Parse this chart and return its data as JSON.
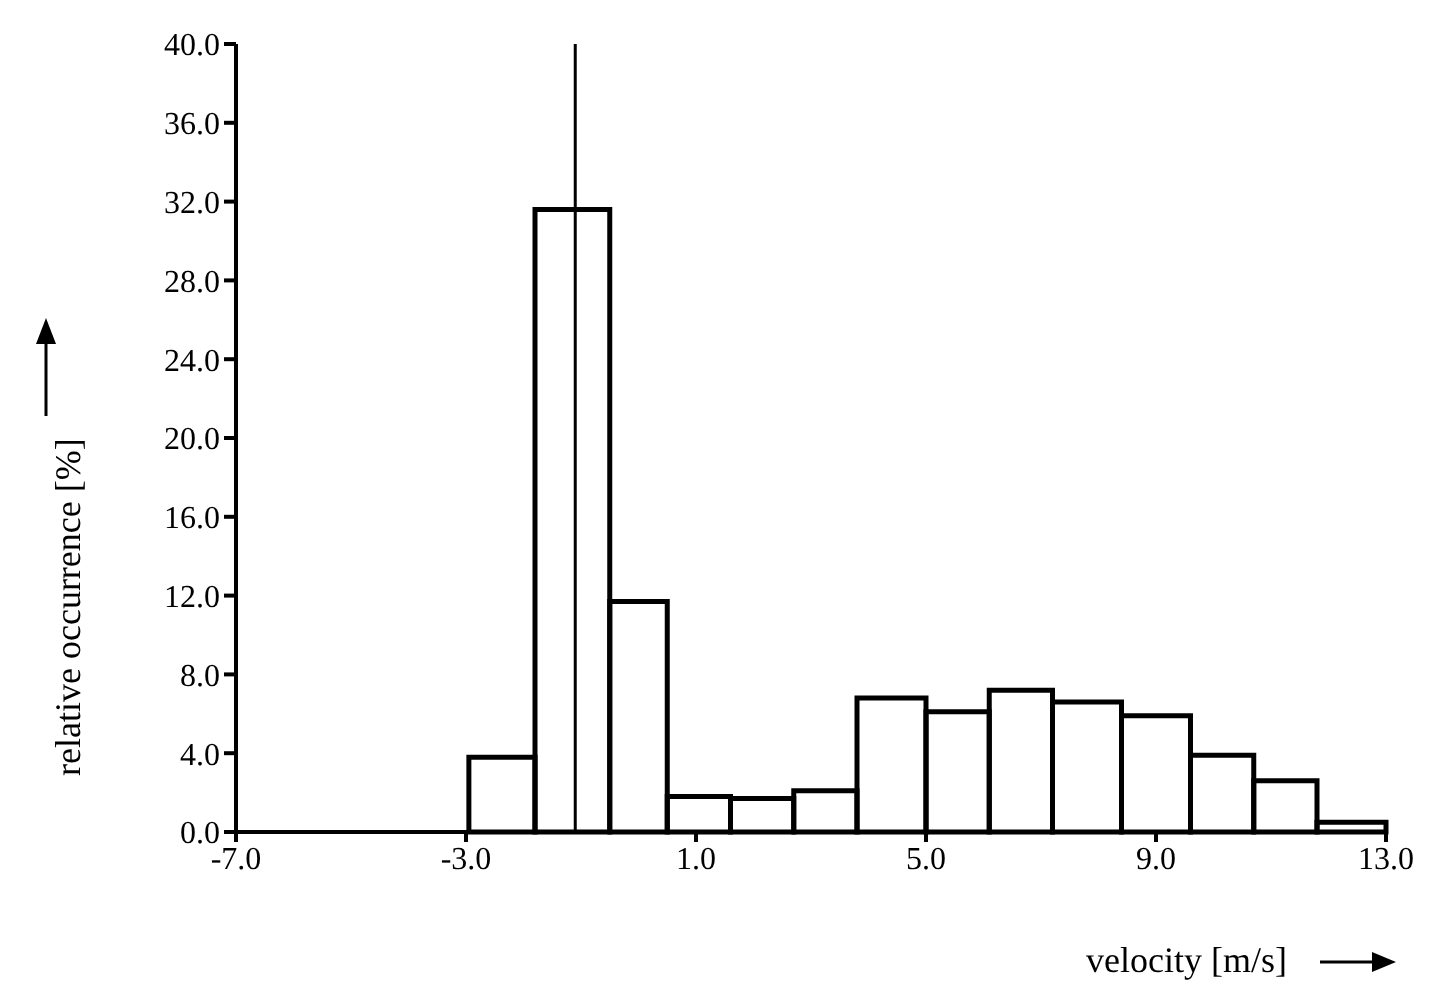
{
  "chart_data": {
    "type": "histogram",
    "xlabel": "velocity [m/s]",
    "ylabel": "relative occurrence [%]",
    "bins": [
      -2.95,
      -1.8,
      -0.5,
      0.5,
      1.6,
      2.7,
      3.8,
      5.0,
      6.1,
      7.2,
      8.4,
      9.6,
      10.7,
      11.8,
      13.0
    ],
    "values": [
      3.8,
      31.6,
      11.7,
      1.8,
      1.7,
      2.1,
      6.8,
      6.1,
      7.2,
      6.6,
      5.9,
      3.9,
      2.6,
      0.5
    ],
    "color": "#000000",
    "xlim": [
      -7,
      13
    ],
    "xticks": [
      {
        "value": -7,
        "label": "-7.0"
      },
      {
        "value": -3,
        "label": "-3.0"
      },
      {
        "value": 1,
        "label": "1.0"
      },
      {
        "value": 5,
        "label": "5.0"
      },
      {
        "value": 9,
        "label": "9.0"
      },
      {
        "value": 13,
        "label": "13.0"
      }
    ],
    "ylim": [
      0,
      40
    ],
    "yticks": [
      {
        "value": 0,
        "label": "0.0"
      },
      {
        "value": 4,
        "label": "4.0"
      },
      {
        "value": 8,
        "label": "8.0"
      },
      {
        "value": 12,
        "label": "12.0"
      },
      {
        "value": 16,
        "label": "16.0"
      },
      {
        "value": 20,
        "label": "20.0"
      },
      {
        "value": 24,
        "label": "24.0"
      },
      {
        "value": 28,
        "label": "28.0"
      },
      {
        "value": 32,
        "label": "32.0"
      },
      {
        "value": 36,
        "label": "36.0"
      },
      {
        "value": 40,
        "label": "40.0"
      }
    ],
    "ref_lines": [
      {
        "axis": "x",
        "value": -1.1,
        "color": "#000000"
      }
    ],
    "grid": false
  }
}
